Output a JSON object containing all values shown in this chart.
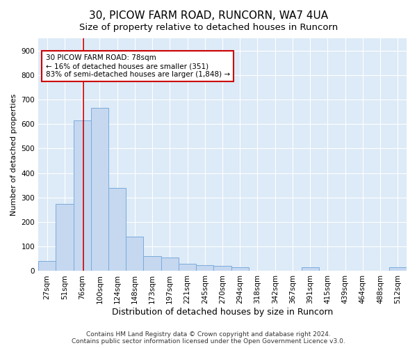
{
  "title1": "30, PICOW FARM ROAD, RUNCORN, WA7 4UA",
  "title2": "Size of property relative to detached houses in Runcorn",
  "xlabel": "Distribution of detached houses by size in Runcorn",
  "ylabel": "Number of detached properties",
  "categories": [
    "27sqm",
    "51sqm",
    "76sqm",
    "100sqm",
    "124sqm",
    "148sqm",
    "173sqm",
    "197sqm",
    "221sqm",
    "245sqm",
    "270sqm",
    "294sqm",
    "318sqm",
    "342sqm",
    "367sqm",
    "391sqm",
    "415sqm",
    "439sqm",
    "464sqm",
    "488sqm",
    "512sqm"
  ],
  "values": [
    40,
    275,
    615,
    665,
    340,
    140,
    60,
    55,
    30,
    25,
    20,
    15,
    0,
    0,
    0,
    15,
    0,
    0,
    0,
    0,
    15
  ],
  "bar_color": "#c5d8f0",
  "bar_edge_color": "#7aabdb",
  "vline_color": "#cc0000",
  "vline_pos": 2.08,
  "annotation_text": "30 PICOW FARM ROAD: 78sqm\n← 16% of detached houses are smaller (351)\n83% of semi-detached houses are larger (1,848) →",
  "annotation_box_facecolor": "#ffffff",
  "annotation_box_edgecolor": "#cc0000",
  "ylim": [
    0,
    950
  ],
  "yticks": [
    0,
    100,
    200,
    300,
    400,
    500,
    600,
    700,
    800,
    900
  ],
  "footer1": "Contains HM Land Registry data © Crown copyright and database right 2024.",
  "footer2": "Contains public sector information licensed under the Open Government Licence v3.0.",
  "fig_bg_color": "#ffffff",
  "plot_bg_color": "#ddeaf7",
  "title1_fontsize": 11,
  "title2_fontsize": 9.5,
  "xlabel_fontsize": 9,
  "ylabel_fontsize": 8,
  "tick_fontsize": 7.5,
  "annotation_fontsize": 7.5,
  "footer_fontsize": 6.5
}
